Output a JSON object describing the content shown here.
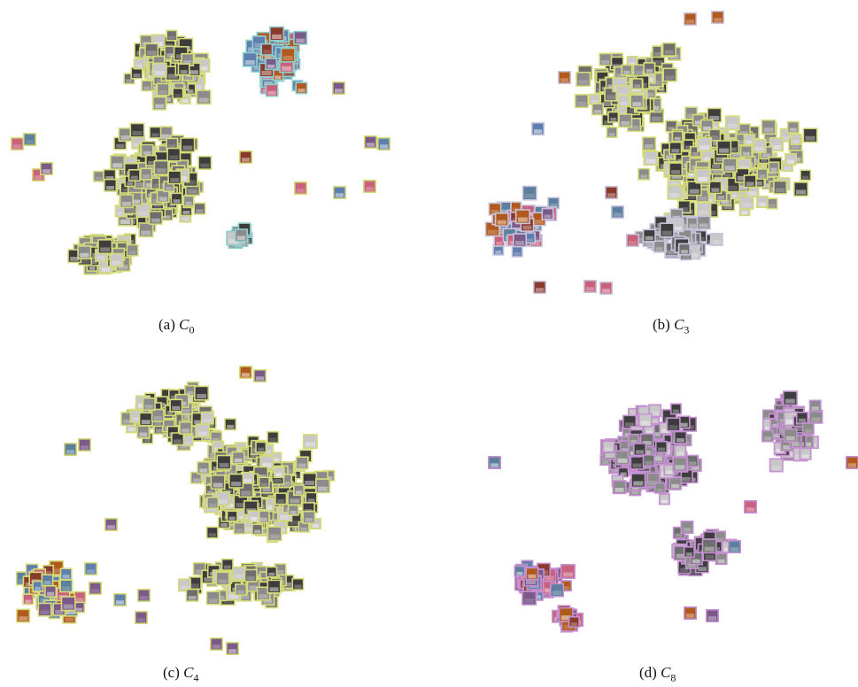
{
  "figure": {
    "panels": [
      {
        "id": "a",
        "tag": "(a)",
        "var": "C",
        "sub": "0"
      },
      {
        "id": "b",
        "tag": "(b)",
        "var": "C",
        "sub": "3"
      },
      {
        "id": "c",
        "tag": "(c)",
        "var": "C",
        "sub": "4"
      },
      {
        "id": "d",
        "tag": "(d)",
        "var": "C",
        "sub": "8"
      }
    ]
  },
  "colors": {
    "border_yellow": "#d6db7a",
    "border_cyan": "#8fd0cf",
    "border_lavender": "#c9c3dc",
    "border_purple": "#c691d3",
    "thumb_gray": "#8b8b8b",
    "thumb_dark": "#3d3d3d",
    "thumb_light": "#c8c8c8",
    "thumb_blue": "#5f7fae",
    "thumb_red": "#8a3a2c",
    "thumb_pink": "#c9607c",
    "thumb_orange": "#b25a1e"
  }
}
